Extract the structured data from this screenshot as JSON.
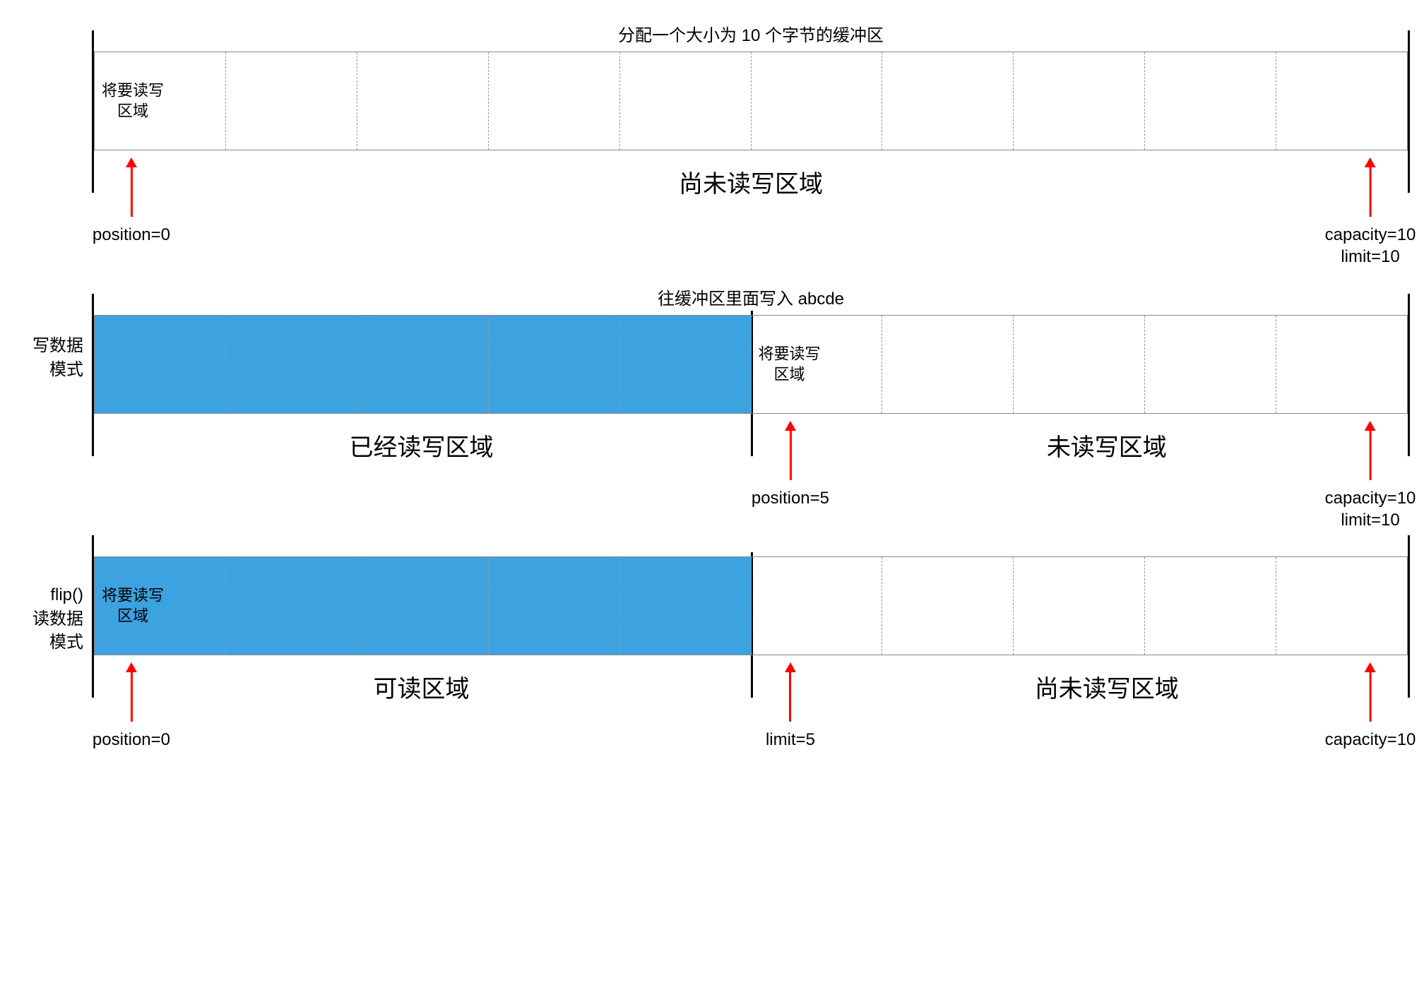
{
  "colors": {
    "fill": "#3ca2e0",
    "arrow": "#ff0000",
    "border": "#888888",
    "dash": "#999999",
    "text": "#000000",
    "background": "#ffffff"
  },
  "cell_count": 10,
  "rows": [
    {
      "id": "row1",
      "left_label": "",
      "title": "分配一个大小为 10 个字节的缓冲区",
      "filled_cells": 0,
      "inner_cell_label": {
        "cell": 0,
        "text_l1": "将要读写",
        "text_l2": "区域"
      },
      "mid_boundary_at": null,
      "regions": [
        {
          "text": "尚未读写区域",
          "left_pct": 50,
          "translate": "-50%"
        }
      ],
      "arrows": [
        {
          "at_pct": 3,
          "label_l1": "position=0",
          "label_l2": ""
        },
        {
          "at_pct": 97,
          "label_l1": "capacity=10",
          "label_l2": "limit=10"
        }
      ]
    },
    {
      "id": "row2",
      "left_label_l1": "写数据",
      "left_label_l2": "模式",
      "title": "往缓冲区里面写入 abcde",
      "filled_cells": 5,
      "inner_cell_label": {
        "cell": 5,
        "text_l1": "将要读写",
        "text_l2": "区域"
      },
      "mid_boundary_at": 50,
      "regions": [
        {
          "text": "已经读写区域",
          "left_pct": 25,
          "translate": "-50%"
        },
        {
          "text": "未读写区域",
          "left_pct": 77,
          "translate": "-50%"
        }
      ],
      "arrows": [
        {
          "at_pct": 53,
          "label_l1": "position=5",
          "label_l2": ""
        },
        {
          "at_pct": 97,
          "label_l1": "capacity=10",
          "label_l2": "limit=10"
        }
      ]
    },
    {
      "id": "row3",
      "left_label_l1": "flip()",
      "left_label_l2": "读数据",
      "left_label_l3": "模式",
      "title": "",
      "filled_cells": 5,
      "inner_cell_label": {
        "cell": 0,
        "text_l1": "将要读写",
        "text_l2": "区域"
      },
      "mid_boundary_at": 50,
      "regions": [
        {
          "text": "可读区域",
          "left_pct": 25,
          "translate": "-50%"
        },
        {
          "text": "尚未读写区域",
          "left_pct": 77,
          "translate": "-50%"
        }
      ],
      "arrows": [
        {
          "at_pct": 3,
          "label_l1": "position=0",
          "label_l2": ""
        },
        {
          "at_pct": 53,
          "label_l1": "limit=5",
          "label_l2": ""
        },
        {
          "at_pct": 97,
          "label_l1": "capacity=10",
          "label_l2": ""
        }
      ]
    }
  ]
}
